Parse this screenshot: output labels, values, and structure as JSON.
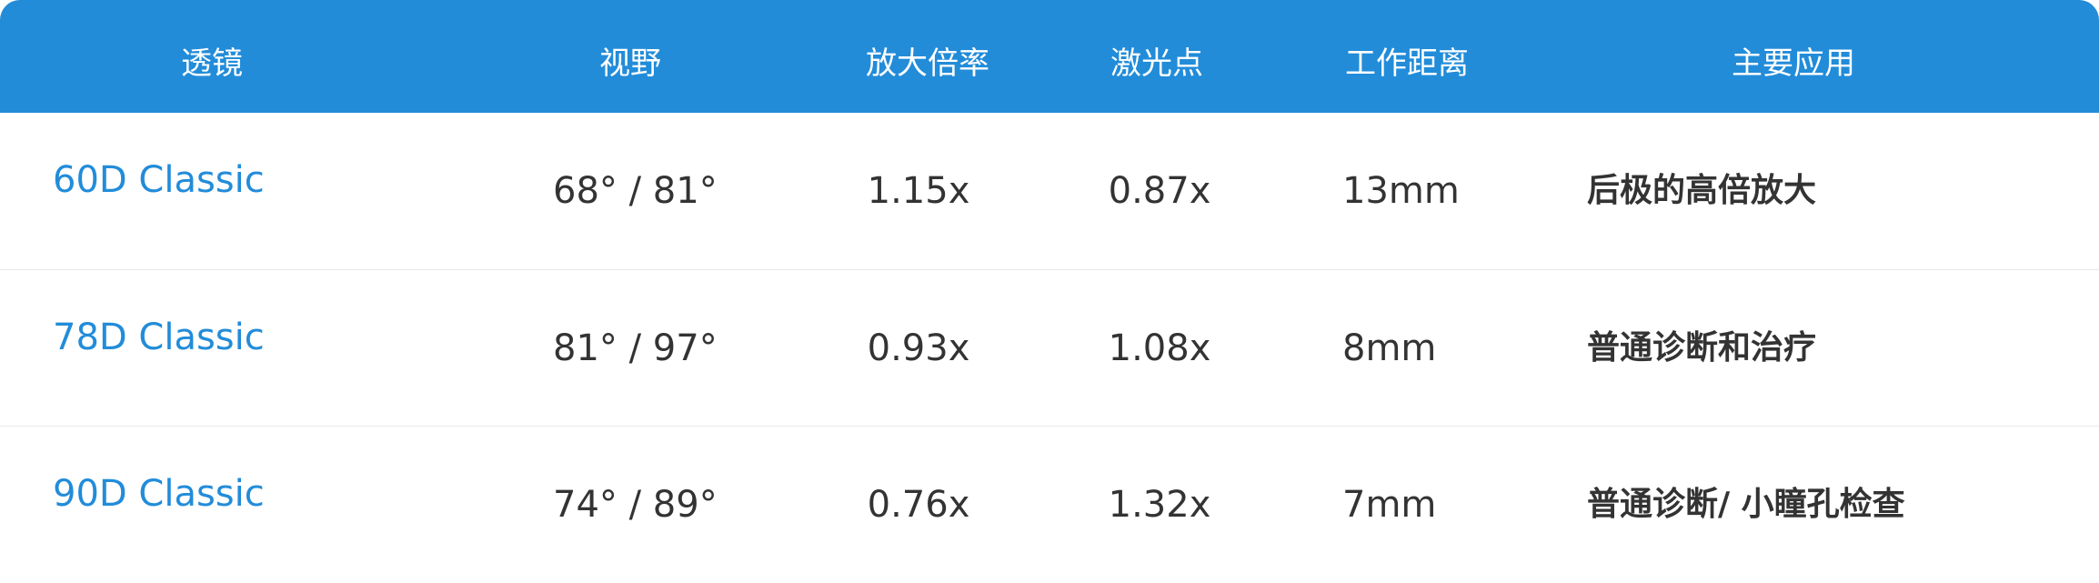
{
  "table": {
    "headers": [
      "透镜",
      "视野",
      "放大倍率",
      "激光点",
      "工作距离",
      "主要应用"
    ],
    "rows": [
      {
        "lens": "60D Classic",
        "field_of_view": "68° / 81°",
        "magnification": "1.15x",
        "laser_spot": "0.87x",
        "working_distance": "13mm",
        "application": "后极的高倍放大"
      },
      {
        "lens": "78D Classic",
        "field_of_view": "81° / 97°",
        "magnification": "0.93x",
        "laser_spot": "1.08x",
        "working_distance": "8mm",
        "application": "普通诊断和治疗"
      },
      {
        "lens": "90D Classic",
        "field_of_view": "74° / 89°",
        "magnification": "0.76x",
        "laser_spot": "1.32x",
        "working_distance": "7mm",
        "application": "普通诊断/ 小瞳孔检查"
      }
    ]
  },
  "colors": {
    "header_background": "#228cd9",
    "header_text": "#ffffff",
    "lens_name": "#228cd9",
    "body_text": "#333333",
    "row_divider": "#e7e9ec"
  }
}
